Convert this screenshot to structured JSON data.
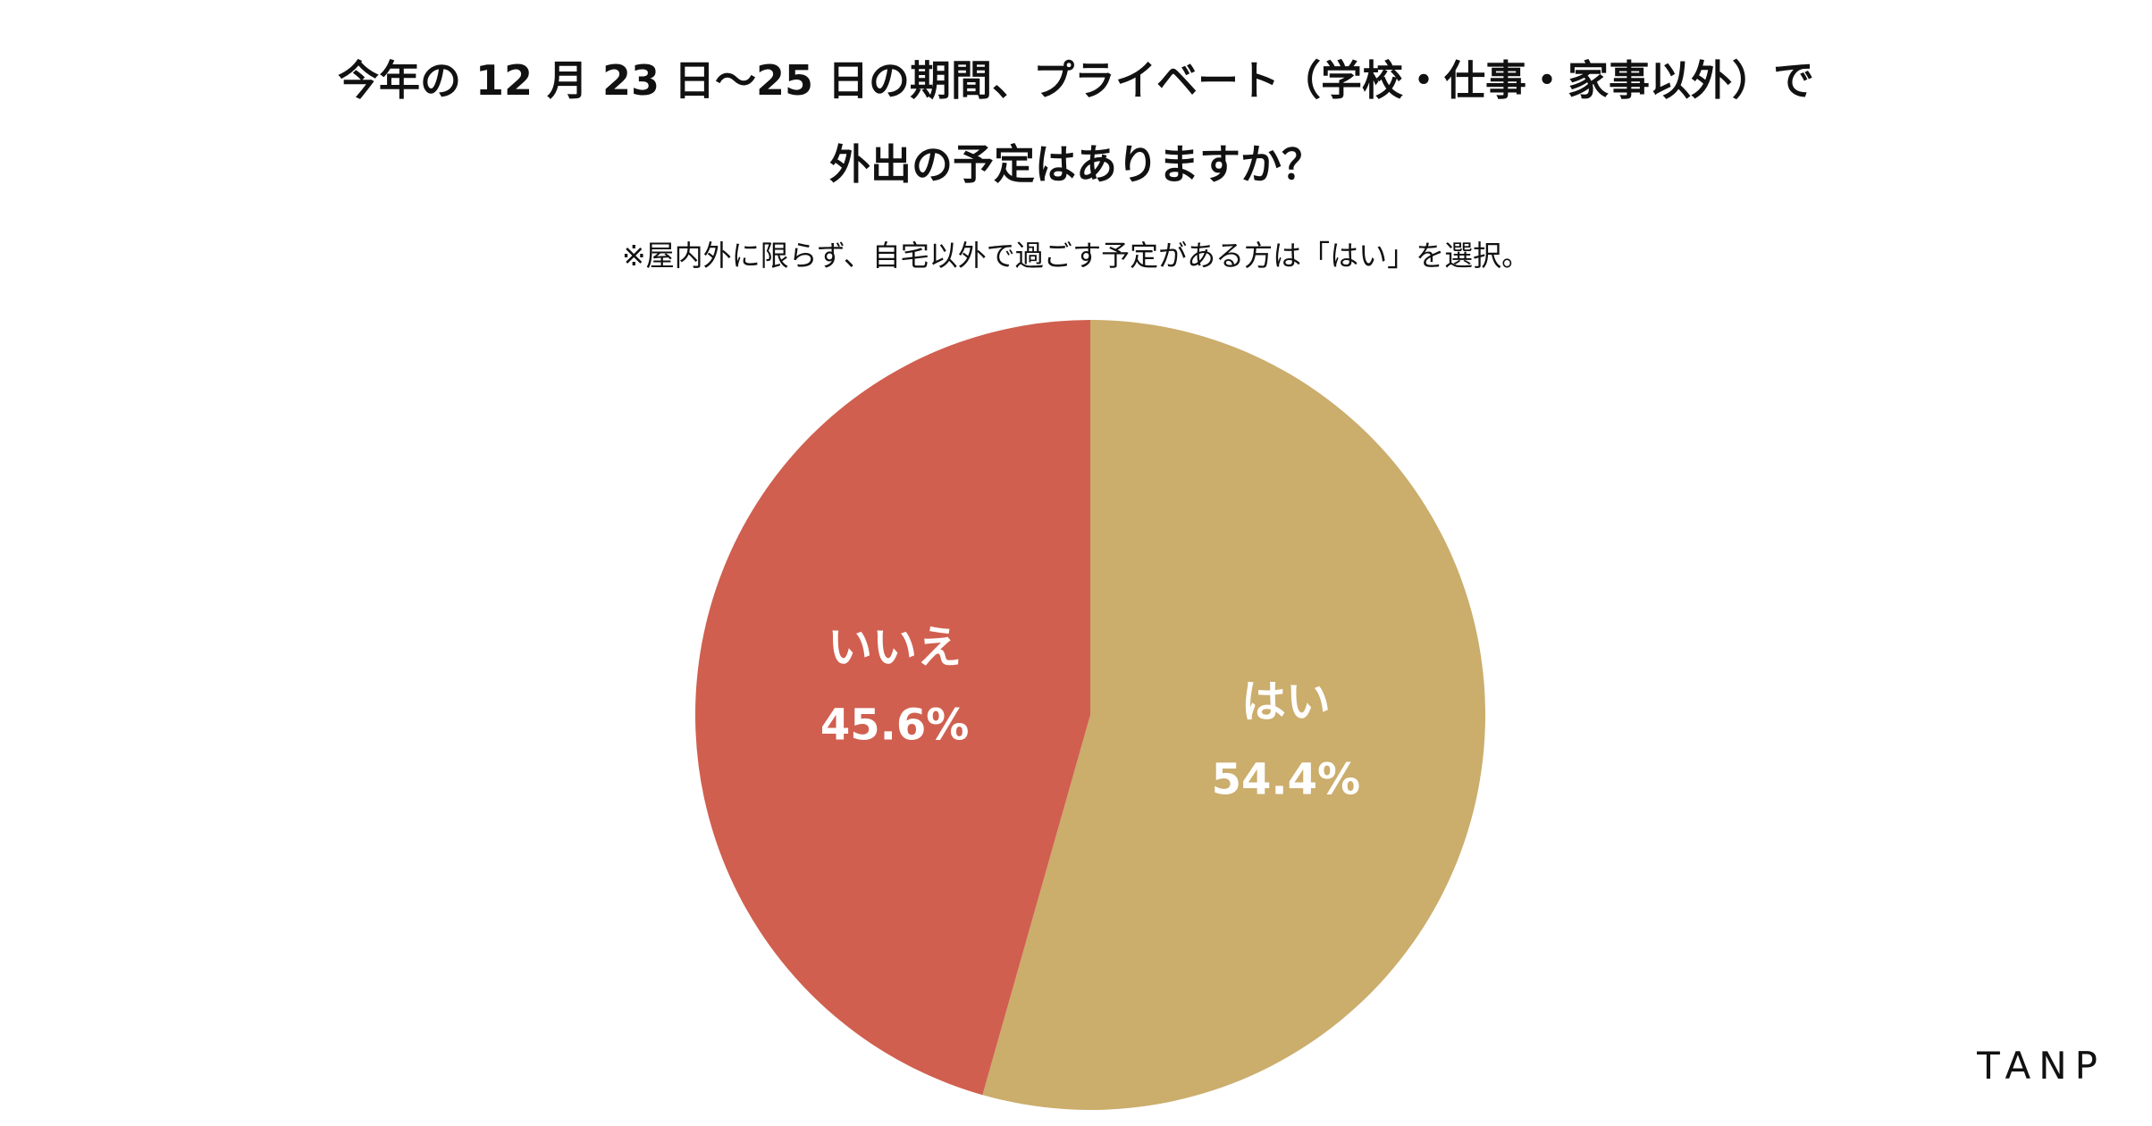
{
  "chart_data": {
    "type": "pie",
    "title": "今年の 12 月 23 日〜25 日の期間、プライベート（学校・仕事・家事以外）で",
    "title_line2": "外出の予定はありますか？",
    "subtitle": "※屋内外に限らず、自宅以外で過ごす予定がある方は「はい」を選択。",
    "slices": [
      {
        "label": "はい",
        "value": 54.4,
        "value_label": "54.4%",
        "color": "#cbad6c"
      },
      {
        "label": "いいえ",
        "value": 45.6,
        "value_label": "45.6%",
        "color": "#d05f4f"
      }
    ],
    "start": "12 o'clock",
    "direction": "clockwise",
    "legend": "none"
  },
  "brand": {
    "logo_text": "TANP"
  }
}
